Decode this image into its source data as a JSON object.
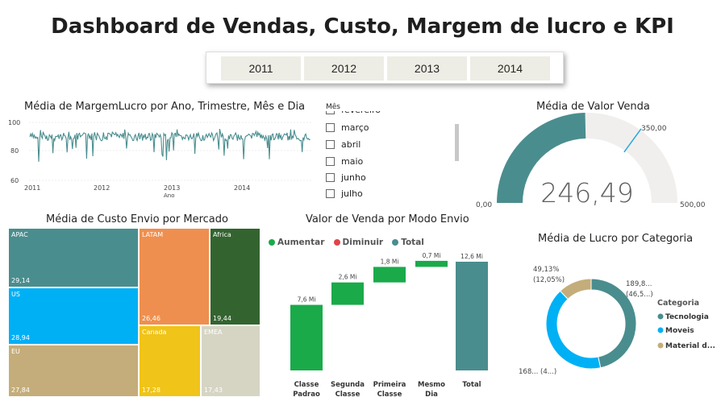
{
  "title": "Dashboard de Vendas, Custo, Margem de lucro e KPI",
  "years": [
    "2011",
    "2012",
    "2013",
    "2014"
  ],
  "line_chart": {
    "title": "Média de MargemLucro por Ano, Trimestre, Mês e Dia",
    "y_ticks": [
      "100",
      "80",
      "60"
    ],
    "x_ticks": [
      "2011",
      "2012",
      "2013",
      "2014"
    ],
    "x_label": "Ano",
    "color": "#4a8d8f"
  },
  "months": {
    "header": "Mês",
    "items": [
      "fevereiro",
      "março",
      "abril",
      "maio",
      "junho",
      "julho"
    ]
  },
  "gauge": {
    "title": "Média de Valor Venda",
    "value": "246,49",
    "min": "0,00",
    "max": "500,00",
    "target": "350,00",
    "value_num": 246.49,
    "min_num": 0,
    "max_num": 500,
    "target_num": 350,
    "fill_color": "#4a8d8f",
    "bg_color": "#f0efed",
    "target_color": "#2aa7dc"
  },
  "treemap": {
    "title": "Média de Custo Envio por Mercado",
    "cells": [
      {
        "label": "APAC",
        "value": "29,14",
        "color": "#4a8d8f"
      },
      {
        "label": "LATAM",
        "value": "26,46",
        "color": "#ef8f4f"
      },
      {
        "label": "Africa",
        "value": "19,44",
        "color": "#33642f"
      },
      {
        "label": "US",
        "value": "28,94",
        "color": "#00b0f5"
      },
      {
        "label": "Canada",
        "value": "17,28",
        "color": "#f0c418"
      },
      {
        "label": "EMEA",
        "value": "17,43",
        "color": "#d6d5c4"
      },
      {
        "label": "EU",
        "value": "27,84",
        "color": "#c4ad7a"
      }
    ]
  },
  "waterfall": {
    "title": "Valor de Venda por Modo Envio",
    "legend": [
      {
        "label": "Aumentar",
        "color": "#1aaa4a"
      },
      {
        "label": "Diminuir",
        "color": "#e0434a"
      },
      {
        "label": "Total",
        "color": "#4a8d8f"
      }
    ],
    "chart_data": {
      "type": "bar",
      "categories": [
        "Classe Padrao",
        "Segunda Classe",
        "Primeira Classe",
        "Mesmo Dia",
        "Total"
      ],
      "values": [
        7.6,
        2.6,
        1.8,
        0.7,
        12.6
      ],
      "data_labels": [
        "7,6 Mi",
        "2,6 Mi",
        "1,8 Mi",
        "0,7 Mi",
        "12,6 Mi"
      ],
      "kinds": [
        "increase",
        "increase",
        "increase",
        "increase",
        "total"
      ]
    },
    "cat_line1": [
      "Classe",
      "Segunda",
      "Primeira",
      "Mesmo",
      "Total"
    ],
    "cat_line2": [
      "Padrao",
      "Classe",
      "Classe",
      "Dia",
      ""
    ]
  },
  "donut": {
    "title": "Média de Lucro por Categoria",
    "legend_title": "Categoria",
    "chart_data": {
      "type": "pie",
      "categories": [
        "Tecnologia",
        "Moveis",
        "Material d..."
      ],
      "values": [
        189.8,
        168,
        49.13
      ],
      "colors": [
        "#4a8d8f",
        "#00b0f5",
        "#c4ad7a"
      ]
    },
    "labels": [
      {
        "line1": "189,8...",
        "line2": "(46,5...)"
      },
      {
        "line1": "168... (4...)",
        "line2": ""
      },
      {
        "line1": "49,13%",
        "line2": "(12,05%)"
      }
    ]
  }
}
